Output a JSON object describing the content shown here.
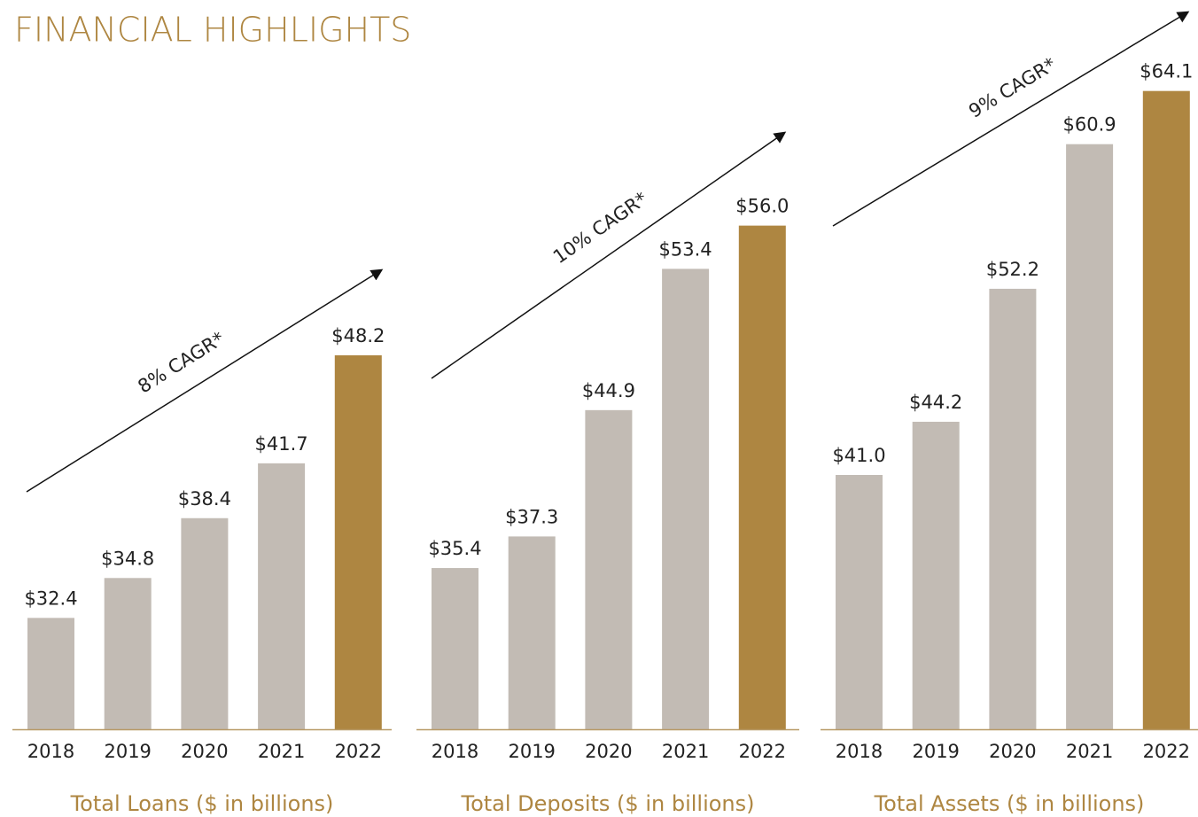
{
  "page_title": "FINANCIAL HIGHLIGHTS",
  "chart_data": [
    {
      "type": "bar",
      "x_label": "Total Loans ($ in billions)",
      "annotation": "8% CAGR*",
      "categories": [
        "2018",
        "2019",
        "2020",
        "2021",
        "2022"
      ],
      "values": [
        32.4,
        34.8,
        38.4,
        41.7,
        48.2
      ],
      "value_labels": [
        "$32.4",
        "$34.8",
        "$38.4",
        "$41.7",
        "$48.2"
      ],
      "colors": [
        "#c2bbb4",
        "#c2bbb4",
        "#c2bbb4",
        "#c2bbb4",
        "#ae8641"
      ],
      "ylim": [
        25.7,
        70
      ]
    },
    {
      "type": "bar",
      "x_label": "Total Deposits ($ in billions)",
      "annotation": "10% CAGR*",
      "categories": [
        "2018",
        "2019",
        "2020",
        "2021",
        "2022"
      ],
      "values": [
        35.4,
        37.3,
        44.9,
        53.4,
        56.0
      ],
      "value_labels": [
        "$35.4",
        "$37.3",
        "$44.9",
        "$53.4",
        "$56.0"
      ],
      "colors": [
        "#c2bbb4",
        "#c2bbb4",
        "#c2bbb4",
        "#c2bbb4",
        "#ae8641"
      ],
      "ylim": [
        25.7,
        70
      ]
    },
    {
      "type": "bar",
      "x_label": "Total Assets ($ in billions)",
      "annotation": "9% CAGR*",
      "categories": [
        "2018",
        "2019",
        "2020",
        "2021",
        "2022"
      ],
      "values": [
        41.0,
        44.2,
        52.2,
        60.9,
        64.1
      ],
      "value_labels": [
        "$41.0",
        "$44.2",
        "$52.2",
        "$60.9",
        "$64.1"
      ],
      "colors": [
        "#c2bbb4",
        "#c2bbb4",
        "#c2bbb4",
        "#c2bbb4",
        "#ae8641"
      ],
      "ylim": [
        25.7,
        70
      ]
    }
  ]
}
